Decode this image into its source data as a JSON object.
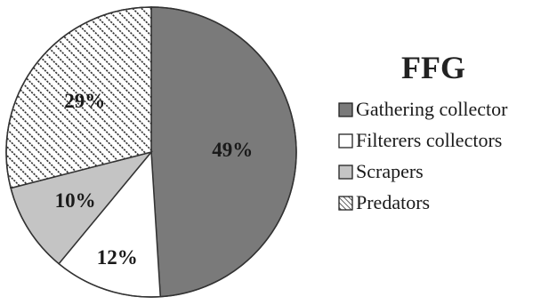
{
  "chart_data": {
    "type": "pie",
    "legend_title": "FFG",
    "legend_placement": "right",
    "slices": [
      {
        "label": "Gathering collector",
        "value": 49,
        "value_label": "49%",
        "fill": "#7a7a7a",
        "pattern": "solid"
      },
      {
        "label": "Filterers collectors",
        "value": 12,
        "value_label": "12%",
        "fill": "#ffffff",
        "pattern": "solid"
      },
      {
        "label": "Scrapers",
        "value": 10,
        "value_label": "10%",
        "fill": "#c4c4c4",
        "pattern": "solid"
      },
      {
        "label": "Predators",
        "value": 29,
        "value_label": "29%",
        "fill": "#ffffff",
        "pattern": "diagonal-hatch"
      }
    ]
  }
}
